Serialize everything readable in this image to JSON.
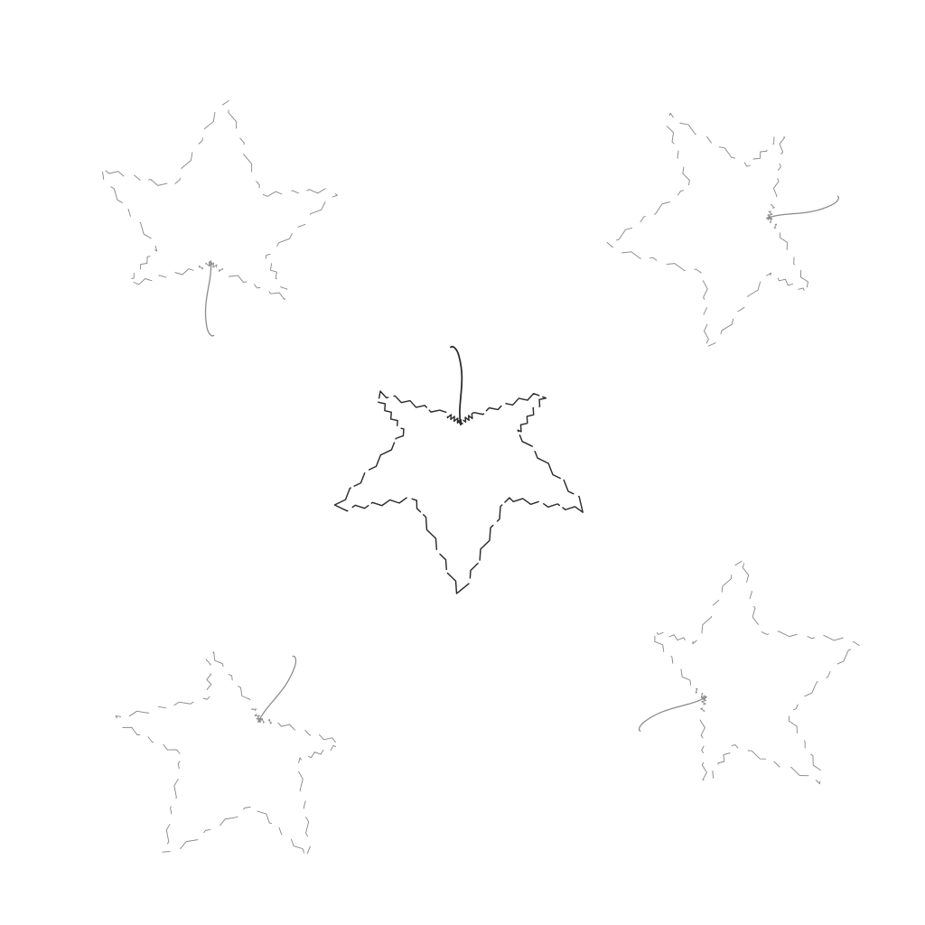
{
  "scene": {
    "background_color": "#ffffff",
    "subject": "maple-leaf-outlines",
    "leaf_count": 5,
    "leaves": [
      {
        "id": "top-left",
        "stroke_color": "#8a8a8a",
        "emphasis": "faint"
      },
      {
        "id": "top-right",
        "stroke_color": "#8a8a8a",
        "emphasis": "faint"
      },
      {
        "id": "center",
        "stroke_color": "#2a2a2a",
        "emphasis": "bold"
      },
      {
        "id": "bottom-left",
        "stroke_color": "#8a8a8a",
        "emphasis": "faint"
      },
      {
        "id": "bottom-right",
        "stroke_color": "#8a8a8a",
        "emphasis": "faint"
      }
    ]
  }
}
